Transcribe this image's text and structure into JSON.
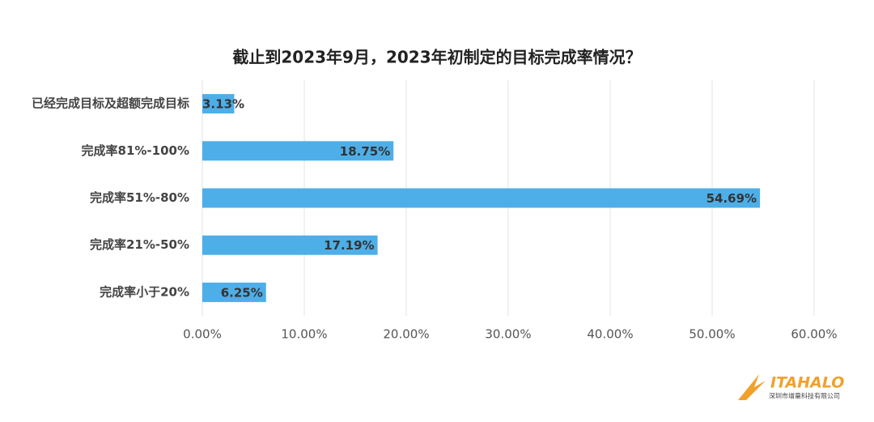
{
  "chart_data": {
    "type": "barh",
    "title": "截止到2023年9月，2023年初制定的目标完成率情况？",
    "categories": [
      "已经完成目标及超额完成目标",
      "完成率81%-100%",
      "完成率51%-80%",
      "完成率21%-50%",
      "完成率小于20%"
    ],
    "values": [
      3.13,
      18.75,
      54.69,
      17.19,
      6.25
    ],
    "value_labels": [
      "3.13%",
      "18.75%",
      "54.69%",
      "17.19%",
      "6.25%"
    ],
    "color": "#4eaee8",
    "xlim": [
      0,
      60
    ],
    "xticks": [
      {
        "value": 0,
        "label": "0.00%"
      },
      {
        "value": 10,
        "label": "10.00%"
      },
      {
        "value": 20,
        "label": "20.00%"
      },
      {
        "value": 30,
        "label": "30.00%"
      },
      {
        "value": 40,
        "label": "40.00%"
      },
      {
        "value": 50,
        "label": "50.00%"
      },
      {
        "value": 60,
        "label": "60.00%"
      }
    ],
    "grid": true
  },
  "logo": {
    "name": "ITAHALO",
    "company": "深圳市增量科技有限公司"
  }
}
